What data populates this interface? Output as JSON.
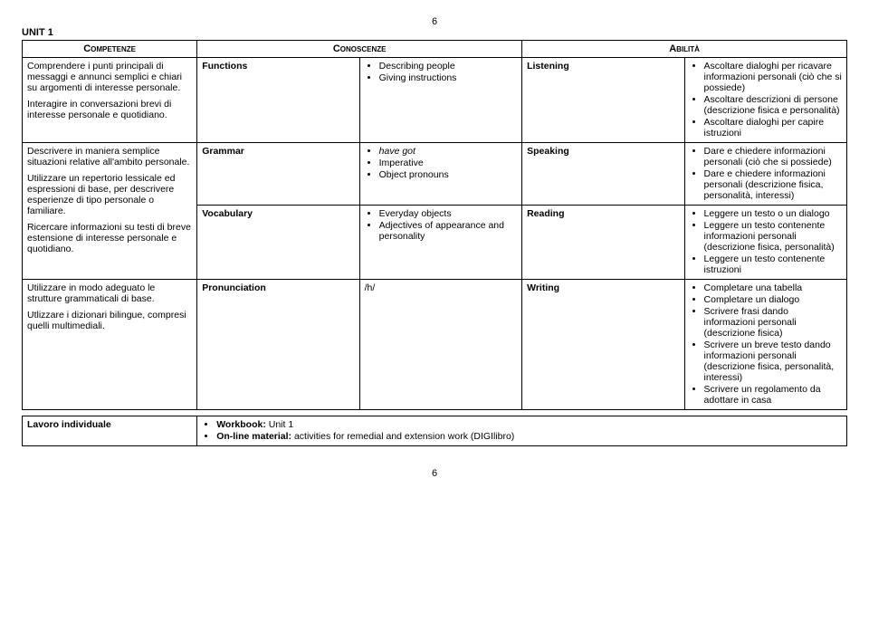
{
  "pageNumber": "6",
  "unitTitle": "UNIT 1",
  "headers": {
    "competenze": "Competenze",
    "conoscenze": "Conoscenze",
    "abilita": "Abilità"
  },
  "competenze": {
    "r1p1": "Comprendere i punti principali di messaggi e annunci semplici e chiari su argomenti di interesse personale.",
    "r1p2": "Interagire in conversazioni brevi di interesse personale e quotidiano.",
    "r2p1": "Descrivere in maniera semplice situazioni relative all'ambito personale.",
    "r2p2": "Utilizzare un repertorio lessicale ed espressioni di base, per descrivere esperienze di tipo personale o familiare.",
    "r3p1": "Ricercare informazioni su testi di breve estensione di interesse personale e quotidiano.",
    "r4p1": "Utilizzare in modo adeguato le strutture grammaticali di base.",
    "r4p2": "Utlizzare i dizionari bilingue, compresi quelli multimediali."
  },
  "conoscenze": {
    "functions": {
      "label": "Functions",
      "i1": "Describing people",
      "i2": "Giving instructions"
    },
    "grammar": {
      "label": "Grammar",
      "i1": "have got",
      "i2": "Imperative",
      "i3": "Object pronouns"
    },
    "vocabulary": {
      "label": "Vocabulary",
      "i1": "Everyday objects",
      "i2": "Adjectives of appearance and personality"
    },
    "pronunciation": {
      "label": "Pronunciation",
      "i1": "/h/"
    }
  },
  "abilita": {
    "listening": {
      "label": "Listening",
      "i1": "Ascoltare dialoghi per ricavare informazioni personali (ciò che si possiede)",
      "i2": "Ascoltare descrizioni di persone (descrizione fisica e personalità)",
      "i3": "Ascoltare dialoghi per capire istruzioni"
    },
    "speaking": {
      "label": "Speaking",
      "i1": "Dare e chiedere informazioni personali (ciò che si possiede)",
      "i2": "Dare e chiedere informazioni personali (descrizione fisica, personalità, interessi)"
    },
    "reading": {
      "label": "Reading",
      "i1": "Leggere un testo o un dialogo",
      "i2": "Leggere un testo contenente informazioni personali (descrizione fisica, personalità)",
      "i3": "Leggere un testo contenente istruzioni"
    },
    "writing": {
      "label": "Writing",
      "i1": "Completare una tabella",
      "i2": "Completare un dialogo",
      "i3": "Scrivere frasi dando informazioni personali (descrizione fisica)",
      "i4": "Scrivere un breve testo dando informazioni personali (descrizione fisica, personalità, interessi)",
      "i5": "Scrivere un regolamento da adottare in casa"
    }
  },
  "lavoro": {
    "label": "Lavoro individuale",
    "wbBold": "Workbook:",
    "wbRest": " Unit 1",
    "onlineBold": "On-line material:",
    "onlineRest": " activities for remedial and extension work (DIGIlibro)"
  }
}
